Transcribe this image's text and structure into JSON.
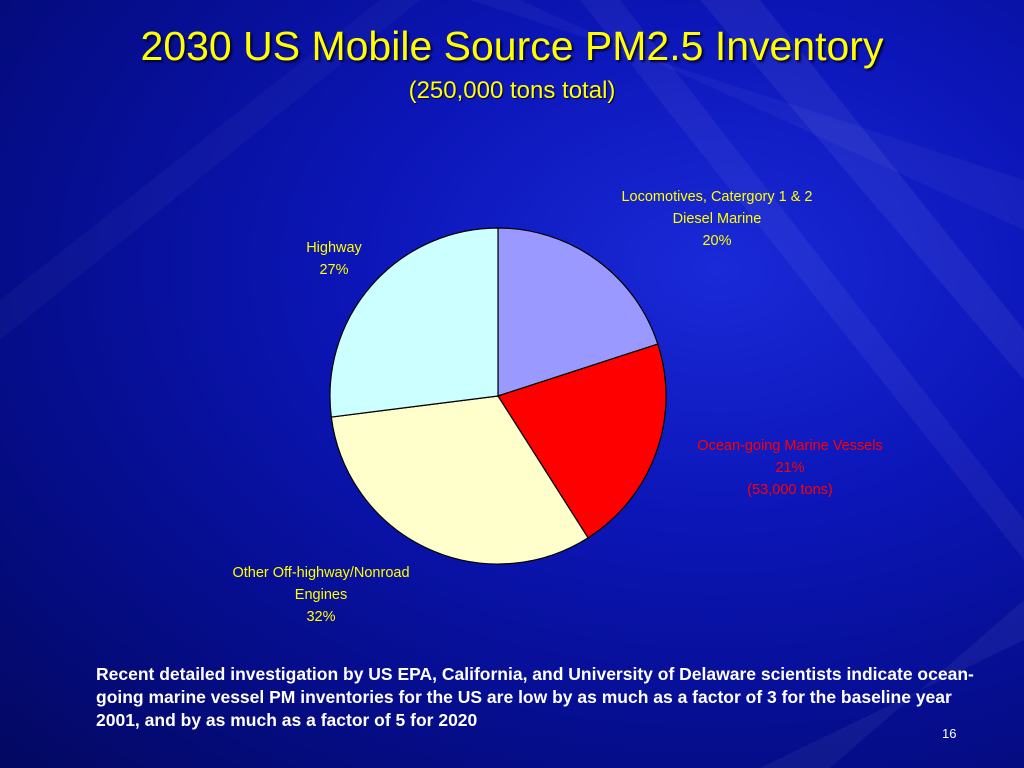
{
  "slide": {
    "title": "2030 US Mobile Source PM2.5 Inventory",
    "subtitle": "(250,000 tons total)",
    "note": "Recent detailed investigation by US EPA, California, and University of Delaware scientists indicate ocean-going marine vessel PM inventories for the US are low by as much as a factor of 3 for the baseline year 2001, and by as much as a factor of 5 for 2020",
    "page_number": "16"
  },
  "colors": {
    "title": "#ffff00",
    "labels": "#ffff00",
    "highlight_label": "#ff0000",
    "note": "#ffffff"
  },
  "chart_data": {
    "type": "pie",
    "start_angle_deg": 0,
    "direction": "clockwise",
    "slices": [
      {
        "label_lines": [
          "Locomotives, Catergory 1 & 2",
          "Diesel Marine",
          "20%"
        ],
        "value": 20,
        "color": "#9999ff",
        "label_color": "#ffff00"
      },
      {
        "label_lines": [
          "Ocean-going Marine Vessels",
          "21%",
          "(53,000 tons)"
        ],
        "value": 21,
        "color": "#ff0000",
        "label_color": "#ff0000"
      },
      {
        "label_lines": [
          "Other Off-highway/Nonroad",
          "Engines",
          "32%"
        ],
        "value": 32,
        "color": "#ffffcc",
        "label_color": "#ffff00"
      },
      {
        "label_lines": [
          "Highway",
          "27%"
        ],
        "value": 27,
        "color": "#ccffff",
        "label_color": "#ffff00"
      }
    ]
  }
}
